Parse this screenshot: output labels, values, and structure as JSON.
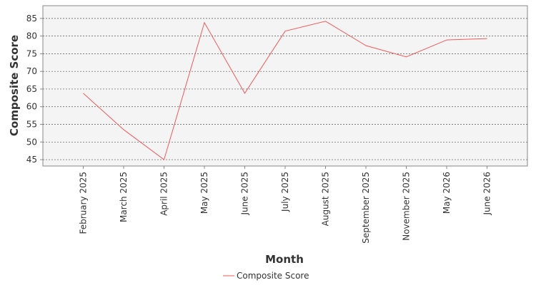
{
  "chart_data": {
    "type": "line",
    "x_label": "Month",
    "y_label": "Composite Score",
    "categories": [
      "February 2025",
      "March 2025",
      "April 2025",
      "May 2025",
      "June 2025",
      "July 2025",
      "August 2025",
      "September 2025",
      "November 2025",
      "May 2026",
      "June 2026"
    ],
    "series": [
      {
        "name": "Composite Score",
        "color": "#f05a5a",
        "values": [
          63.8,
          53.5,
          45.0,
          83.8,
          63.8,
          81.4,
          84.2,
          77.3,
          74.1,
          78.9,
          79.3
        ]
      }
    ],
    "ylim": [
      43.2,
      88.6
    ],
    "yticks": [
      45,
      50,
      55,
      60,
      65,
      70,
      75,
      80,
      85
    ],
    "grid": true,
    "legend": "bottom"
  }
}
